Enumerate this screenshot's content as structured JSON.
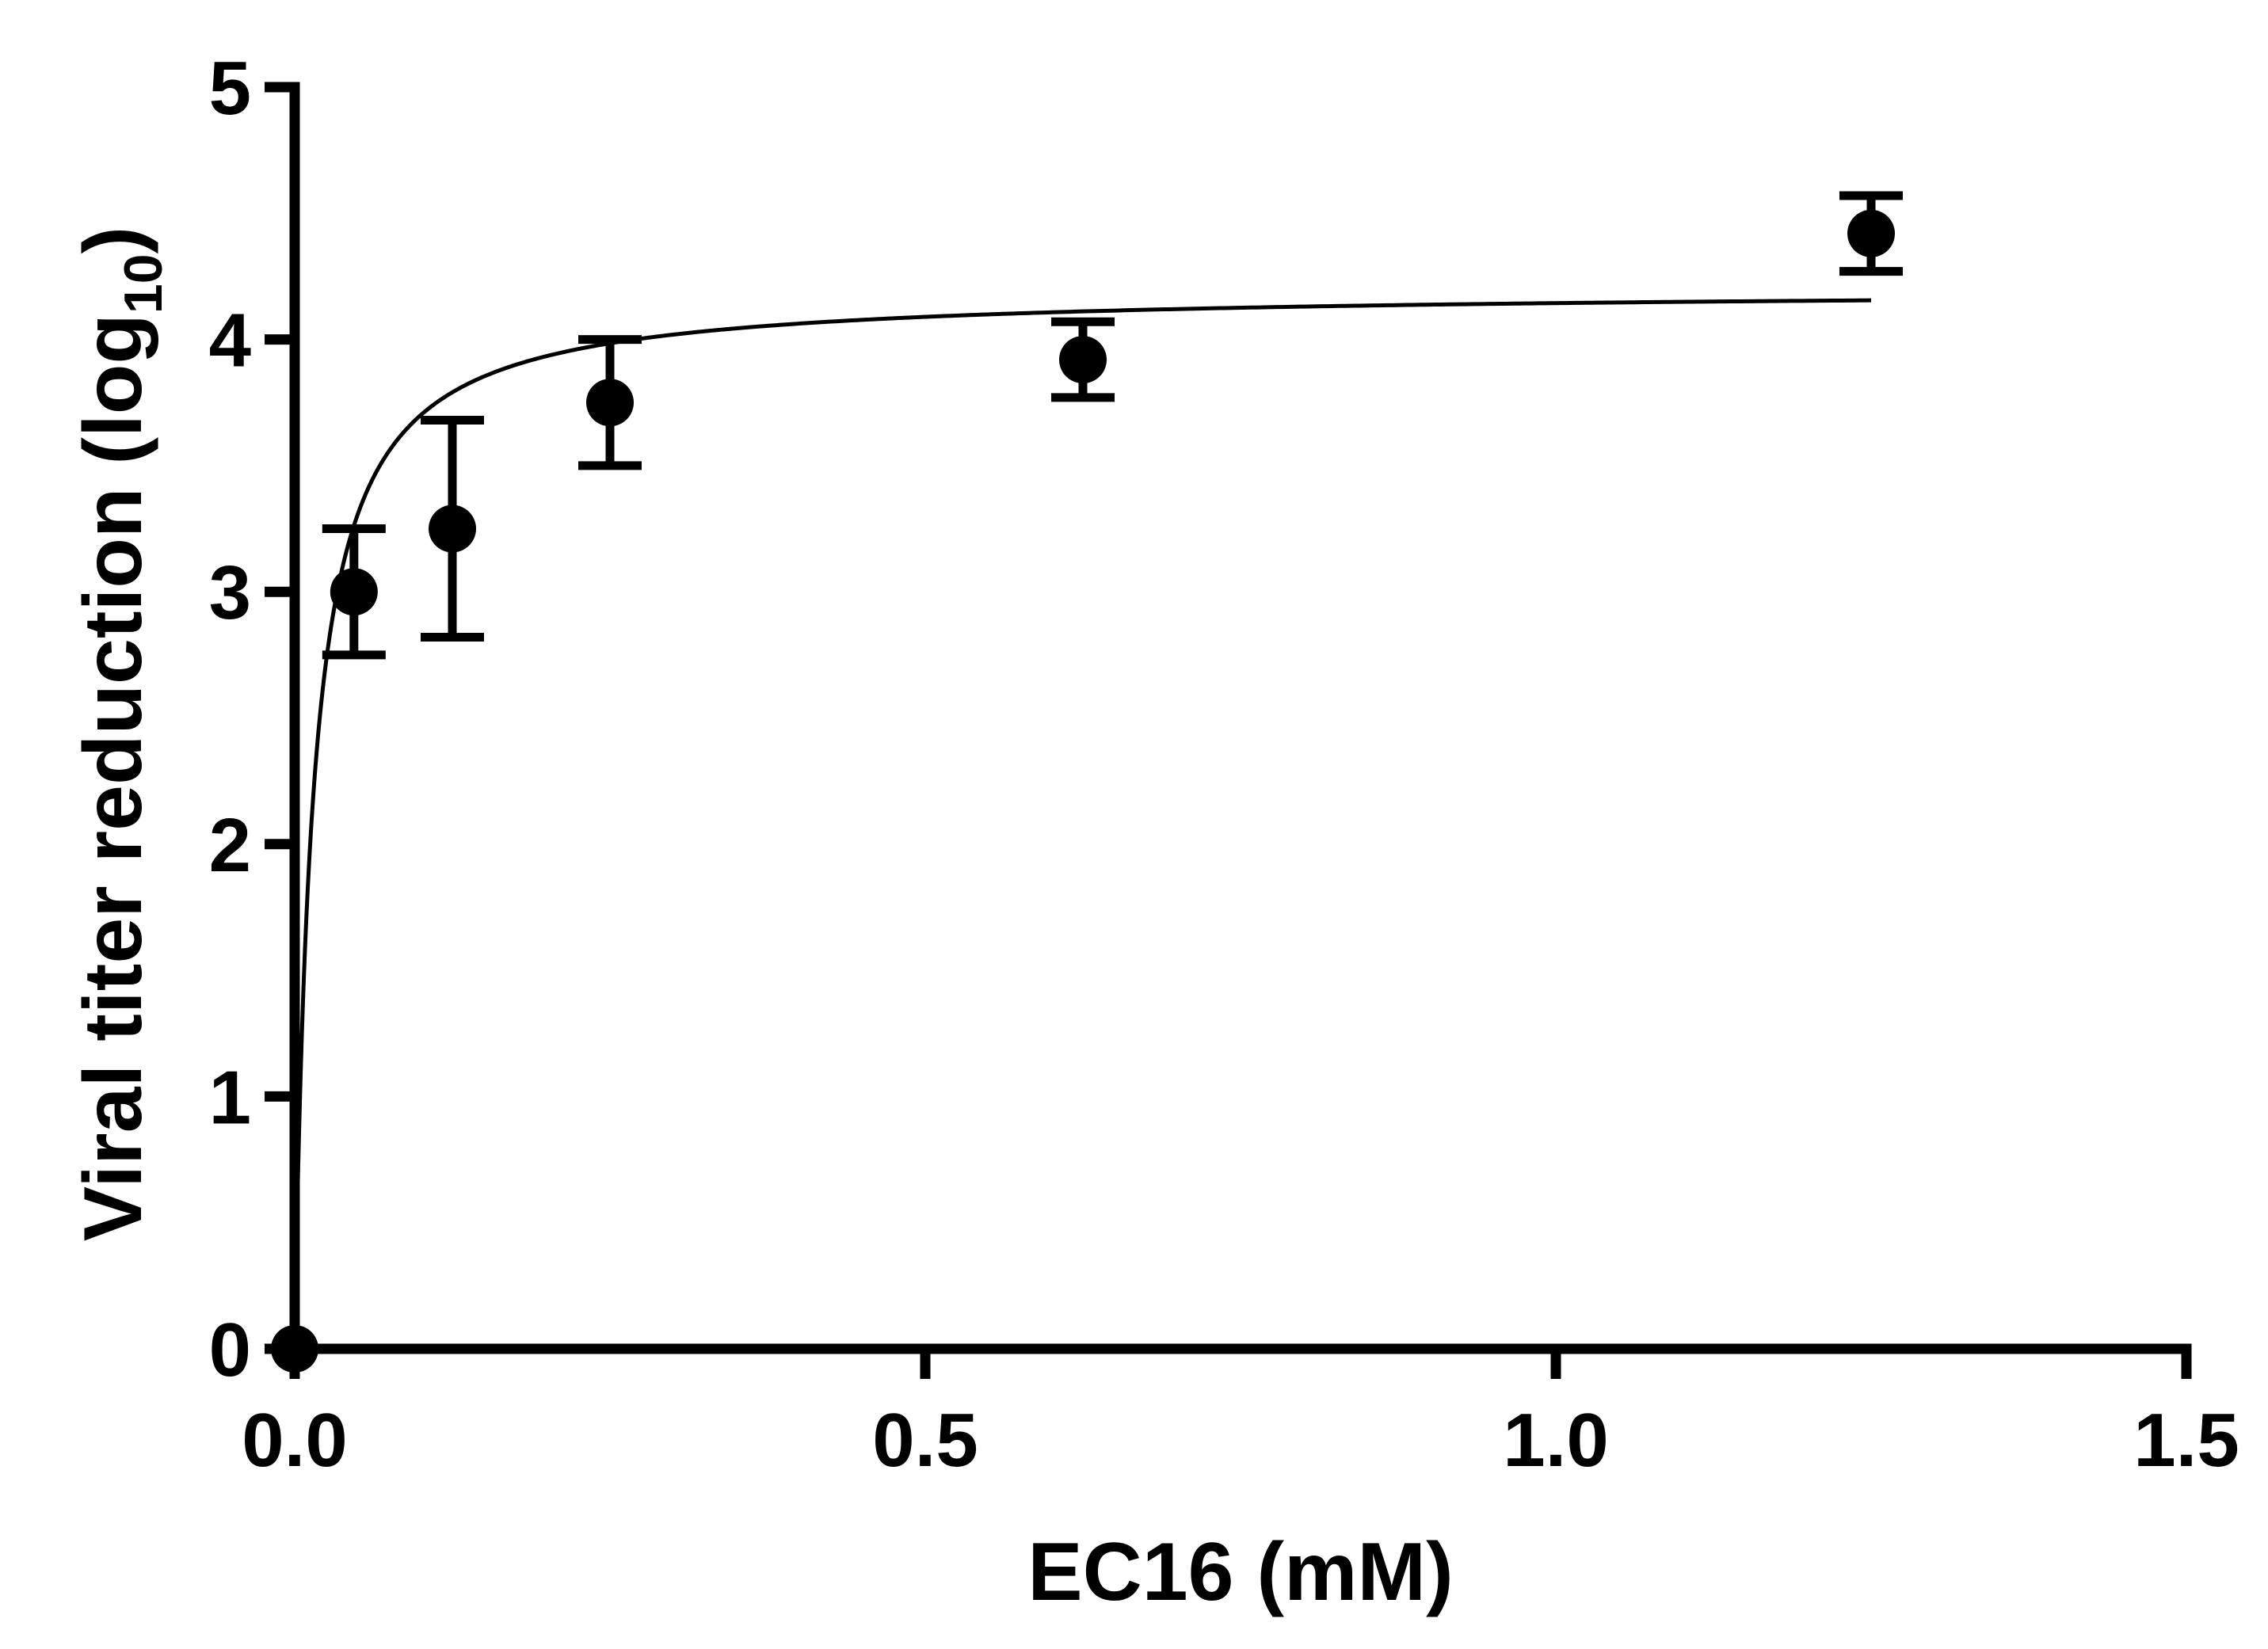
{
  "chart_data": {
    "type": "scatter",
    "title": "",
    "xlabel": "EC16 (mM)",
    "ylabel_main": "Viral titer reduction (log",
    "ylabel_sub": "10",
    "ylabel_close": ")",
    "xlim": [
      0,
      1.5
    ],
    "ylim": [
      0,
      5
    ],
    "x_ticks": [
      0,
      0.5,
      1.0,
      1.5
    ],
    "x_tick_labels": [
      "0.0",
      "0.5",
      "1.0",
      "1.5"
    ],
    "y_ticks": [
      0,
      1,
      2,
      3,
      4,
      5
    ],
    "y_tick_labels": [
      "0",
      "1",
      "2",
      "3",
      "4",
      "5"
    ],
    "grid": false,
    "legend": "none",
    "series": [
      {
        "points": [
          {
            "x": 0.0,
            "y": 0.0,
            "err": 0
          },
          {
            "x": 0.047,
            "y": 3.0,
            "err": 0.25
          },
          {
            "x": 0.125,
            "y": 3.25,
            "err": 0.43
          },
          {
            "x": 0.25,
            "y": 3.75,
            "err": 0.25
          },
          {
            "x": 0.625,
            "y": 3.92,
            "err": 0.15
          },
          {
            "x": 1.25,
            "y": 4.42,
            "err": 0.15
          }
        ]
      }
    ],
    "fit_curve": {
      "model": "hyperbolic",
      "bmax": 4.2,
      "kd": 0.0135,
      "x_range": [
        0,
        1.25
      ]
    },
    "colors": {
      "marks": "#000000",
      "background": "#ffffff"
    }
  }
}
